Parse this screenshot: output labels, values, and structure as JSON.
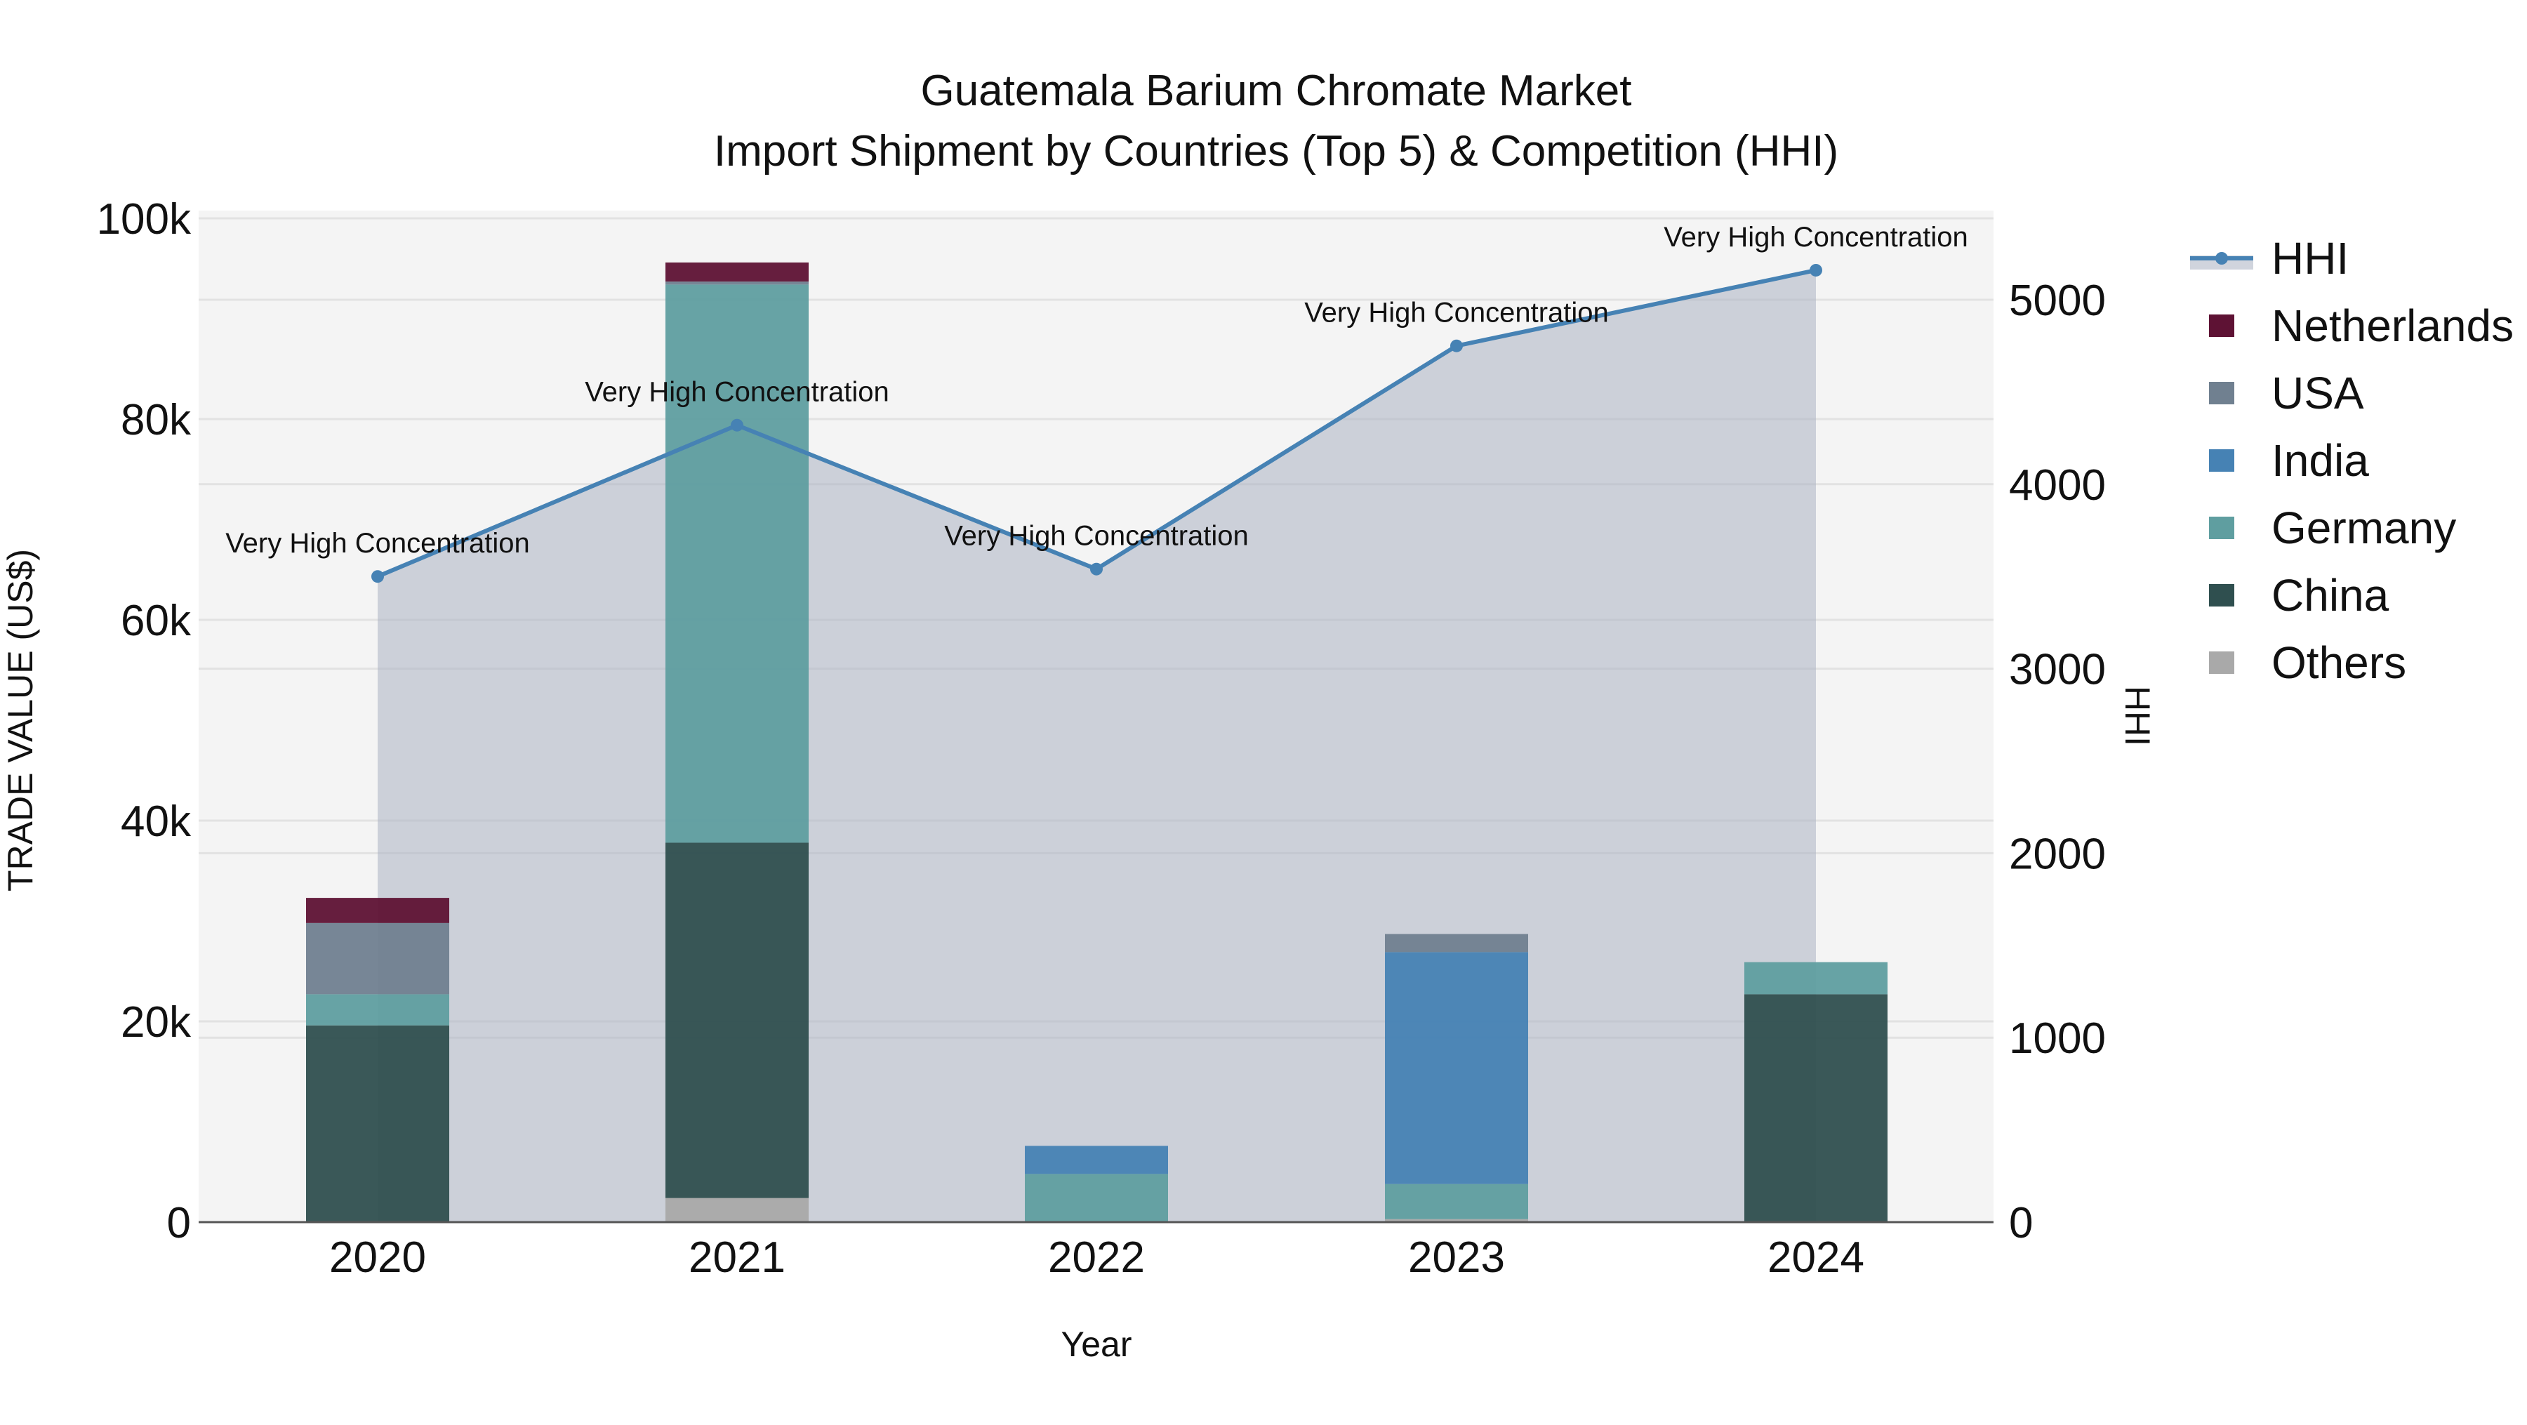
{
  "chart_data": {
    "type": "bar",
    "subtype": "stacked bar with line/area overlay (secondary axis)",
    "title": "Guatemala Barium Chromate Market",
    "subtitle": "Import Shipment by Countries (Top 5) & Competition (HHI)",
    "xlabel": "Year",
    "ylabel": "TRADE VALUE (US$)",
    "y2label": "HHI",
    "categories": [
      "2020",
      "2021",
      "2022",
      "2023",
      "2024"
    ],
    "ylim": [
      0,
      100000
    ],
    "y_ticks": [
      0,
      20000,
      40000,
      60000,
      80000,
      100000
    ],
    "y_tick_labels": [
      "0",
      "20k",
      "40k",
      "60k",
      "80k",
      "100k"
    ],
    "y2lim": [
      0,
      5450
    ],
    "y2_ticks": [
      0,
      1000,
      2000,
      3000,
      4000,
      5000
    ],
    "y2_tick_labels": [
      "0",
      "1000",
      "2000",
      "3000",
      "4000",
      "5000"
    ],
    "grid": true,
    "legend_position": "right",
    "series": [
      {
        "name": "Others",
        "color": "#a9a9a9",
        "values": [
          0,
          2400,
          0,
          300,
          0
        ]
      },
      {
        "name": "China",
        "color": "#2f4f4f",
        "values": [
          19600,
          35400,
          0,
          0,
          22700
        ]
      },
      {
        "name": "Germany",
        "color": "#5f9ea0",
        "values": [
          3100,
          55600,
          4800,
          3500,
          3200
        ]
      },
      {
        "name": "India",
        "color": "#4682b4",
        "values": [
          0,
          0,
          2800,
          23100,
          0
        ]
      },
      {
        "name": "USA",
        "color": "#708090",
        "values": [
          7100,
          300,
          0,
          1800,
          0
        ]
      },
      {
        "name": "Netherlands",
        "color": "#5e1234",
        "values": [
          2500,
          1900,
          0,
          0,
          0
        ]
      }
    ],
    "line_series": {
      "name": "HHI",
      "axis": "y2",
      "color": "#4682b4",
      "fill_color": "#b0b8c6",
      "values": [
        3500,
        4320,
        3540,
        4750,
        5160
      ],
      "annotations": [
        "Very High Concentration",
        "Very High Concentration",
        "Very High Concentration",
        "Very High Concentration",
        "Very High Concentration"
      ]
    }
  },
  "legend": {
    "items": [
      {
        "label": "HHI",
        "kind": "line",
        "color": "#4682b4"
      },
      {
        "label": "Netherlands",
        "kind": "box",
        "color": "#5e1234"
      },
      {
        "label": "USA",
        "kind": "box",
        "color": "#708090"
      },
      {
        "label": "India",
        "kind": "box",
        "color": "#4682b4"
      },
      {
        "label": "Germany",
        "kind": "box",
        "color": "#5f9ea0"
      },
      {
        "label": "China",
        "kind": "box",
        "color": "#2f4f4f"
      },
      {
        "label": "Others",
        "kind": "box",
        "color": "#a9a9a9"
      }
    ]
  },
  "colors": {
    "plot_bg": "#f4f4f4",
    "grid": "#e2e2e2",
    "axis_line": "#555555"
  }
}
